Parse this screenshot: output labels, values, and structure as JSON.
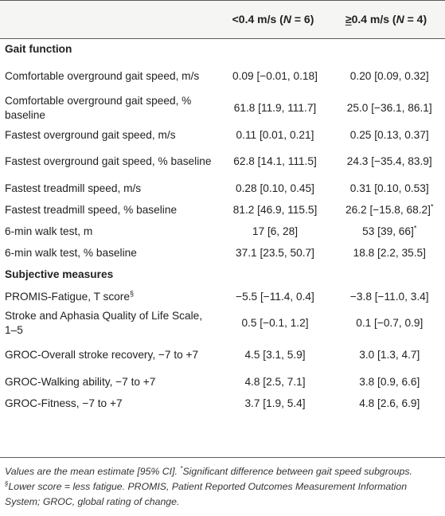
{
  "header": {
    "col2": {
      "pre": "<0.4 m/s (",
      "n_label": "N",
      "n_value": " = 6)"
    },
    "col3": {
      "sym": "≥",
      "pre": "0.4 m/s (",
      "n_label": "N",
      "n_value": " = 4)"
    }
  },
  "sections": {
    "gait": "Gait function",
    "subjective": "Subjective measures"
  },
  "rows": {
    "r1": {
      "label": "Comfortable overground gait speed, m/s",
      "g1": "0.09 [−0.01, 0.18]",
      "g2": "0.20 [0.09, 0.32]"
    },
    "r2": {
      "label": "Comfortable overground gait speed, % baseline",
      "g1": "61.8 [11.9, 111.7]",
      "g2": "25.0 [−36.1, 86.1]"
    },
    "r3": {
      "label": "Fastest overground gait speed, m/s",
      "g1": "0.11 [0.01, 0.21]",
      "g2": "0.25 [0.13, 0.37]"
    },
    "r4": {
      "label": "Fastest overground gait speed, % baseline",
      "g1": "62.8 [14.1, 111.5]",
      "g2": "24.3 [−35.4, 83.9]"
    },
    "r5": {
      "label": "Fastest treadmill speed, m/s",
      "g1": "0.28 [0.10, 0.45]",
      "g2": "0.31 [0.10, 0.53]"
    },
    "r6": {
      "label": "Fastest treadmill speed, % baseline",
      "g1": "81.2 [46.9, 115.5]",
      "g2": "26.2 [−15.8, 68.2]",
      "g2_mark": "*"
    },
    "r7": {
      "label": "6-min walk test, m",
      "g1": "17 [6, 28]",
      "g2": "53 [39, 66]",
      "g2_mark": "*"
    },
    "r8": {
      "label": "6-min walk test, % baseline",
      "g1": "37.1 [23.5, 50.7]",
      "g2": "18.8 [2.2, 35.5]"
    },
    "r9": {
      "label": "PROMIS-Fatigue, T score",
      "label_mark": "§",
      "g1": "−5.5 [−11.4, 0.4]",
      "g2": "−3.8 [−11.0, 3.4]"
    },
    "r10": {
      "label": "Stroke and Aphasia Quality of Life Scale, 1–5",
      "g1": "0.5 [−0.1, 1.2]",
      "g2": "0.1 [−0.7, 0.9]"
    },
    "r11": {
      "label": "GROC-Overall stroke recovery, −7 to +7",
      "g1": "4.5 [3.1, 5.9]",
      "g2": "3.0 [1.3, 4.7]"
    },
    "r12": {
      "label": "GROC-Walking ability, −7 to +7",
      "g1": "4.8 [2.5, 7.1]",
      "g2": "3.8 [0.9, 6.6]"
    },
    "r13": {
      "label": "GROC-Fitness, −7 to +7",
      "g1": "3.7 [1.9, 5.4]",
      "g2": "4.8 [2.6, 6.9]"
    }
  },
  "footnote": {
    "part1": "Values are the mean estimate [95% CI]. ",
    "star": "*",
    "part2": "Significant difference between gait speed subgroups. ",
    "sect": "§",
    "part3": "Lower score = less fatigue. PROMIS, Patient Reported Outcomes Measurement Information System; GROC, global rating of change."
  }
}
